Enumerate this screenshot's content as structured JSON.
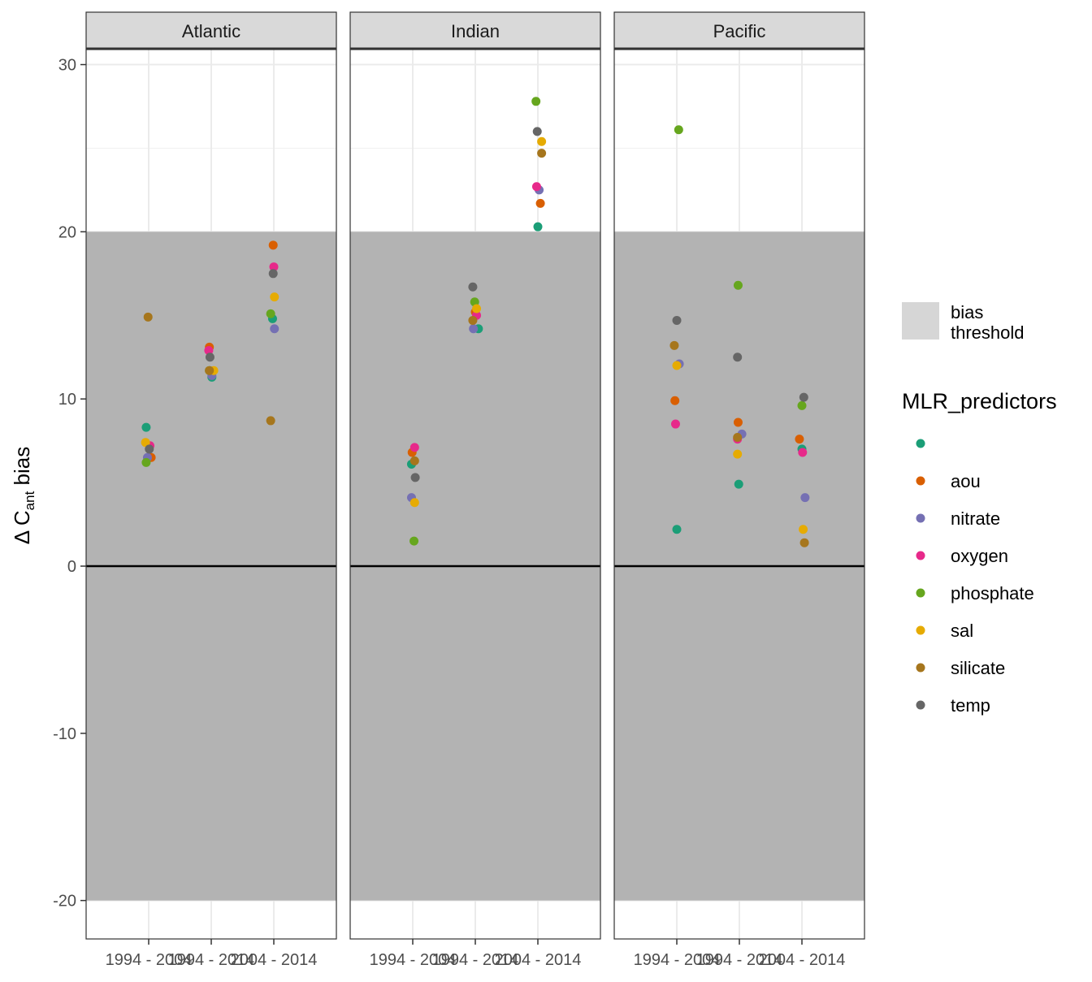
{
  "chart_data": {
    "type": "scatter",
    "ylabel_parts": {
      "delta": "Δ C",
      "sub": "ant",
      "suffix": " bias"
    },
    "ylim": [
      -22.3,
      30.9
    ],
    "yticks": [
      -20,
      -10,
      0,
      10,
      20,
      30
    ],
    "ytick_labels": [
      "-20",
      "-10",
      "0",
      "10",
      "20",
      "30"
    ],
    "categories": [
      "1994 - 2004",
      "1994 - 2014",
      "2004 - 2014"
    ],
    "bias_threshold": [
      -20,
      20
    ],
    "grid": true,
    "zero_line": true,
    "legend_position": "right",
    "legend_fill": {
      "label": "bias\nthreshold",
      "label_lines": [
        "bias",
        "threshold"
      ],
      "color": "#b3b3b3"
    },
    "legend_title": "MLR_predictors",
    "series": [
      {
        "name": "",
        "color": "#1b9e77"
      },
      {
        "name": "aou",
        "color": "#d95f02"
      },
      {
        "name": "nitrate",
        "color": "#7570b3"
      },
      {
        "name": "oxygen",
        "color": "#e7298a"
      },
      {
        "name": "phosphate",
        "color": "#66a61e"
      },
      {
        "name": "sal",
        "color": "#e6ab02"
      },
      {
        "name": "silicate",
        "color": "#a6761d"
      },
      {
        "name": "temp",
        "color": "#666666"
      }
    ],
    "panels": [
      {
        "name": "Atlantic",
        "points": [
          {
            "series": 0,
            "cat": 0,
            "dx": -0.04,
            "y": 8.3
          },
          {
            "series": 1,
            "cat": 0,
            "dx": 0.04,
            "y": 6.5
          },
          {
            "series": 2,
            "cat": 0,
            "dx": -0.02,
            "y": 6.5
          },
          {
            "series": 3,
            "cat": 0,
            "dx": 0.02,
            "y": 7.2
          },
          {
            "series": 4,
            "cat": 0,
            "dx": -0.04,
            "y": 6.2
          },
          {
            "series": 5,
            "cat": 0,
            "dx": -0.05,
            "y": 7.4
          },
          {
            "series": 6,
            "cat": 0,
            "dx": -0.01,
            "y": 14.9
          },
          {
            "series": 7,
            "cat": 0,
            "dx": 0.01,
            "y": 7.0
          },
          {
            "series": 0,
            "cat": 1,
            "dx": 0.01,
            "y": 11.3
          },
          {
            "series": 1,
            "cat": 1,
            "dx": -0.03,
            "y": 13.1
          },
          {
            "series": 2,
            "cat": 1,
            "dx": 0.01,
            "y": 11.4
          },
          {
            "series": 3,
            "cat": 1,
            "dx": -0.04,
            "y": 12.9
          },
          {
            "series": 4,
            "cat": 1,
            "dx": -0.03,
            "y": 11.7
          },
          {
            "series": 5,
            "cat": 1,
            "dx": 0.04,
            "y": 11.7
          },
          {
            "series": 6,
            "cat": 1,
            "dx": -0.03,
            "y": 11.7
          },
          {
            "series": 7,
            "cat": 1,
            "dx": -0.02,
            "y": 12.5
          },
          {
            "series": 0,
            "cat": 2,
            "dx": -0.02,
            "y": 14.8
          },
          {
            "series": 1,
            "cat": 2,
            "dx": -0.01,
            "y": 19.2
          },
          {
            "series": 2,
            "cat": 2,
            "dx": 0.01,
            "y": 14.2
          },
          {
            "series": 3,
            "cat": 2,
            "dx": 0.0,
            "y": 17.9
          },
          {
            "series": 4,
            "cat": 2,
            "dx": -0.05,
            "y": 15.1
          },
          {
            "series": 5,
            "cat": 2,
            "dx": 0.01,
            "y": 16.1
          },
          {
            "series": 6,
            "cat": 2,
            "dx": -0.05,
            "y": 8.7
          },
          {
            "series": 7,
            "cat": 2,
            "dx": -0.01,
            "y": 17.5
          }
        ]
      },
      {
        "name": "Indian",
        "points": [
          {
            "series": 0,
            "cat": 0,
            "dx": -0.02,
            "y": 6.1
          },
          {
            "series": 1,
            "cat": 0,
            "dx": -0.01,
            "y": 6.8
          },
          {
            "series": 2,
            "cat": 0,
            "dx": -0.02,
            "y": 4.1
          },
          {
            "series": 3,
            "cat": 0,
            "dx": 0.03,
            "y": 7.1
          },
          {
            "series": 4,
            "cat": 0,
            "dx": 0.02,
            "y": 1.5
          },
          {
            "series": 5,
            "cat": 0,
            "dx": 0.03,
            "y": 3.8
          },
          {
            "series": 6,
            "cat": 0,
            "dx": 0.03,
            "y": 6.3
          },
          {
            "series": 7,
            "cat": 0,
            "dx": 0.04,
            "y": 5.3
          },
          {
            "series": 0,
            "cat": 1,
            "dx": 0.05,
            "y": 14.2
          },
          {
            "series": 1,
            "cat": 1,
            "dx": 0.0,
            "y": 15.2
          },
          {
            "series": 2,
            "cat": 1,
            "dx": -0.03,
            "y": 14.2
          },
          {
            "series": 3,
            "cat": 1,
            "dx": 0.02,
            "y": 15.0
          },
          {
            "series": 4,
            "cat": 1,
            "dx": -0.01,
            "y": 15.8
          },
          {
            "series": 5,
            "cat": 1,
            "dx": 0.02,
            "y": 15.4
          },
          {
            "series": 6,
            "cat": 1,
            "dx": -0.04,
            "y": 14.7
          },
          {
            "series": 7,
            "cat": 1,
            "dx": -0.04,
            "y": 16.7
          },
          {
            "series": 0,
            "cat": 2,
            "dx": 0.0,
            "y": 20.3
          },
          {
            "series": 1,
            "cat": 2,
            "dx": 0.04,
            "y": 21.7
          },
          {
            "series": 2,
            "cat": 2,
            "dx": 0.02,
            "y": 22.5
          },
          {
            "series": 3,
            "cat": 2,
            "dx": -0.02,
            "y": 22.7
          },
          {
            "series": 4,
            "cat": 2,
            "dx": -0.03,
            "y": 27.8
          },
          {
            "series": 5,
            "cat": 2,
            "dx": 0.06,
            "y": 25.4
          },
          {
            "series": 6,
            "cat": 2,
            "dx": 0.06,
            "y": 24.7
          },
          {
            "series": 7,
            "cat": 2,
            "dx": -0.01,
            "y": 26.0
          }
        ]
      },
      {
        "name": "Pacific",
        "points": [
          {
            "series": 0,
            "cat": 0,
            "dx": 0.0,
            "y": 2.2
          },
          {
            "series": 1,
            "cat": 0,
            "dx": -0.03,
            "y": 9.9
          },
          {
            "series": 2,
            "cat": 0,
            "dx": 0.04,
            "y": 12.1
          },
          {
            "series": 3,
            "cat": 0,
            "dx": -0.02,
            "y": 8.5
          },
          {
            "series": 4,
            "cat": 0,
            "dx": 0.03,
            "y": 26.1
          },
          {
            "series": 5,
            "cat": 0,
            "dx": 0.0,
            "y": 12.0
          },
          {
            "series": 6,
            "cat": 0,
            "dx": -0.04,
            "y": 13.2
          },
          {
            "series": 7,
            "cat": 0,
            "dx": 0.0,
            "y": 14.7
          },
          {
            "series": 0,
            "cat": 1,
            "dx": -0.01,
            "y": 4.9
          },
          {
            "series": 1,
            "cat": 1,
            "dx": -0.02,
            "y": 8.6
          },
          {
            "series": 2,
            "cat": 1,
            "dx": 0.04,
            "y": 7.9
          },
          {
            "series": 3,
            "cat": 1,
            "dx": -0.03,
            "y": 7.6
          },
          {
            "series": 4,
            "cat": 1,
            "dx": -0.02,
            "y": 16.8
          },
          {
            "series": 5,
            "cat": 1,
            "dx": -0.03,
            "y": 6.7
          },
          {
            "series": 6,
            "cat": 1,
            "dx": -0.03,
            "y": 7.7
          },
          {
            "series": 7,
            "cat": 1,
            "dx": -0.03,
            "y": 12.5
          },
          {
            "series": 0,
            "cat": 2,
            "dx": 0.0,
            "y": 7.0
          },
          {
            "series": 1,
            "cat": 2,
            "dx": -0.04,
            "y": 7.6
          },
          {
            "series": 2,
            "cat": 2,
            "dx": 0.05,
            "y": 4.1
          },
          {
            "series": 3,
            "cat": 2,
            "dx": 0.01,
            "y": 6.8
          },
          {
            "series": 4,
            "cat": 2,
            "dx": 0.0,
            "y": 9.6
          },
          {
            "series": 5,
            "cat": 2,
            "dx": 0.02,
            "y": 2.2
          },
          {
            "series": 6,
            "cat": 2,
            "dx": 0.04,
            "y": 1.4
          },
          {
            "series": 7,
            "cat": 2,
            "dx": 0.03,
            "y": 10.1
          }
        ]
      }
    ]
  }
}
